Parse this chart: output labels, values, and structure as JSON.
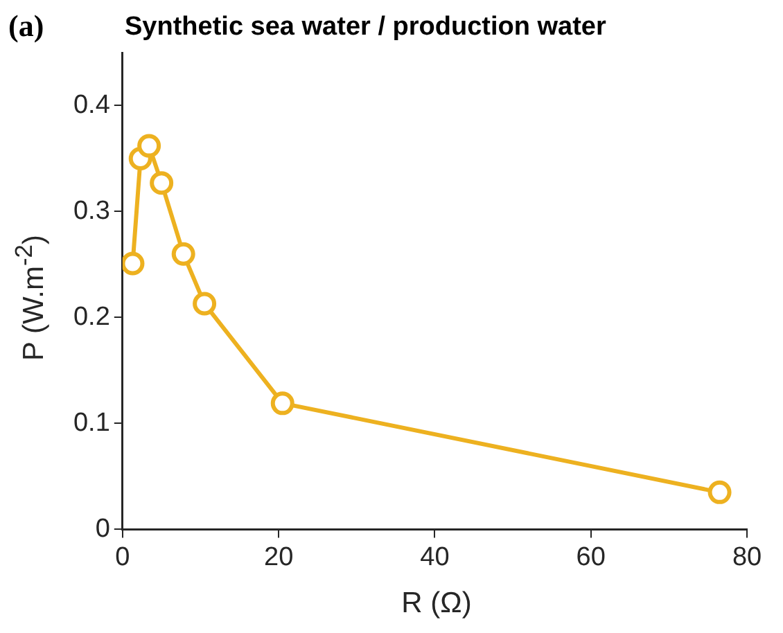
{
  "chart_data": {
    "type": "line",
    "title": "Synthetic sea water / production water",
    "annotations": [
      "(a)"
    ],
    "xlabel": "R (Ω)",
    "ylabel": "P (W.m$^{-2}$)",
    "x": [
      1.3,
      2.3,
      3.4,
      5,
      7.8,
      10.5,
      20.5,
      76.5
    ],
    "series": [
      {
        "color": "#edb120",
        "values": [
          0.251,
          0.35,
          0.362,
          0.327,
          0.26,
          0.213,
          0.119,
          0.035
        ]
      }
    ],
    "xlim": [
      0,
      80
    ],
    "xticks": [
      0,
      20,
      40,
      60,
      80
    ],
    "ylim": [
      0,
      0.45
    ],
    "yticks": [
      0,
      0.1,
      0.2,
      0.3,
      0.4
    ],
    "grid": false,
    "marker": "circle",
    "line_style": "solid"
  }
}
